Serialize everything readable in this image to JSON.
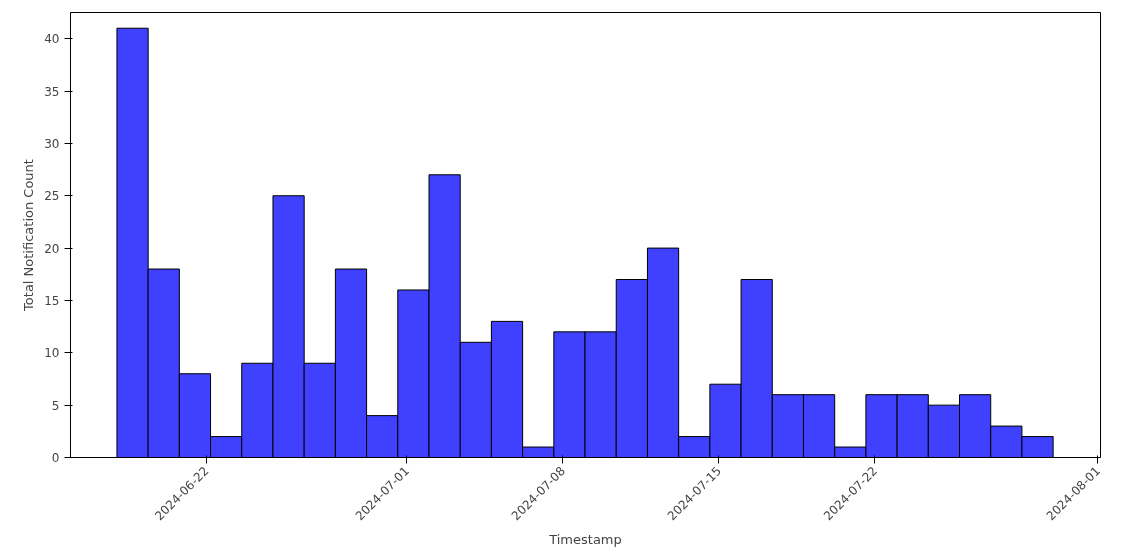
{
  "chart_data": {
    "type": "histogram",
    "xlabel": "Timestamp",
    "ylabel": "Total Notification Count",
    "bins": [
      "2024-06-18T00:00",
      "2024-06-19T09:36",
      "2024-06-20T19:12",
      "2024-06-22T04:48",
      "2024-06-23T14:24",
      "2024-06-25T00:00",
      "2024-06-26T09:36",
      "2024-06-27T19:12",
      "2024-06-29T04:48",
      "2024-06-30T14:24",
      "2024-07-02T00:00",
      "2024-07-03T09:36",
      "2024-07-04T19:12",
      "2024-07-06T04:48",
      "2024-07-07T14:24",
      "2024-07-09T00:00",
      "2024-07-10T09:36",
      "2024-07-11T19:12",
      "2024-07-13T04:48",
      "2024-07-14T14:24",
      "2024-07-16T00:00",
      "2024-07-17T09:36",
      "2024-07-18T19:12",
      "2024-07-20T04:48",
      "2024-07-21T14:24",
      "2024-07-23T00:00",
      "2024-07-24T09:36",
      "2024-07-25T19:12",
      "2024-07-27T04:48",
      "2024-07-28T14:24",
      "2024-07-30T00:00"
    ],
    "values": [
      41,
      18,
      8,
      2,
      9,
      25,
      9,
      18,
      4,
      16,
      27,
      11,
      13,
      1,
      12,
      12,
      17,
      20,
      2,
      7,
      17,
      6,
      6,
      1,
      6,
      6,
      5,
      6,
      3,
      2
    ],
    "color": "#4040ff",
    "xlim": [
      "2024-06-15T22:00",
      "2024-08-01T03:00"
    ],
    "xticks": [
      "2024-06-22",
      "2024-07-01",
      "2024-07-08",
      "2024-07-15",
      "2024-07-22",
      "2024-08-01"
    ],
    "ylim": [
      0,
      42.5
    ],
    "yticks": [
      0,
      5,
      10,
      15,
      20,
      25,
      30,
      35,
      40
    ],
    "grid": false
  }
}
